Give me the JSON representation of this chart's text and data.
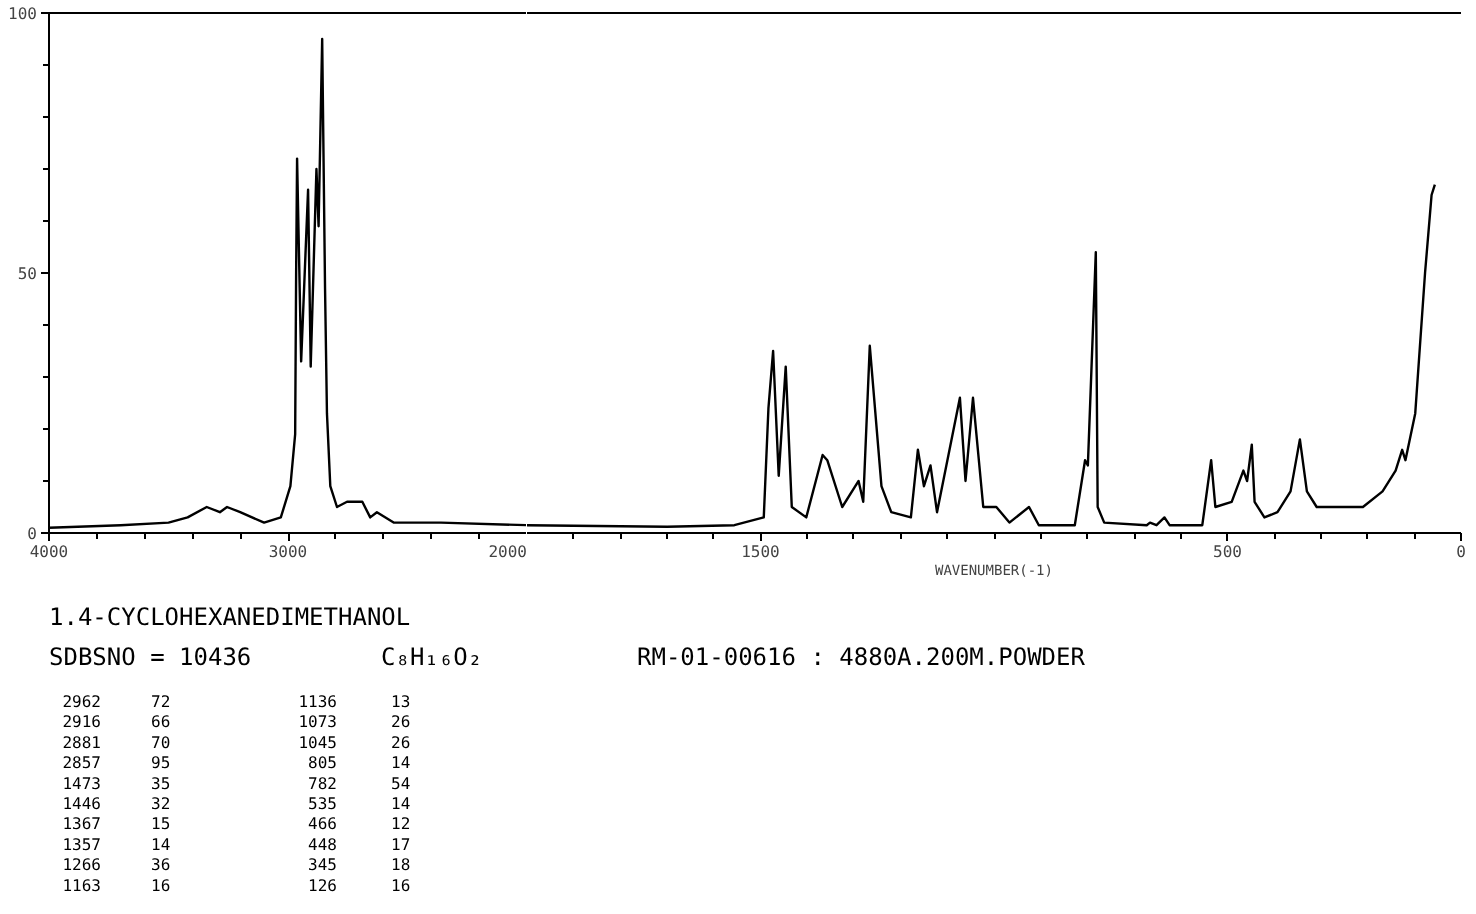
{
  "chart_data": [
    {
      "type": "line",
      "title": "1.4-CYCLOHEXANEDIMETHANOL",
      "x": [
        4000,
        3700,
        3500,
        3420,
        3340,
        3285,
        3255,
        3200,
        3100,
        3030,
        2990,
        2970,
        2966,
        2962,
        2945,
        2916,
        2905,
        2881,
        2872,
        2857,
        2845,
        2837,
        2823,
        2795,
        2753,
        2720,
        2689,
        2656,
        2628,
        2558,
        2360,
        2000
      ],
      "series": [
        {
          "color": "#000000",
          "values": [
            1,
            1.5,
            2,
            3,
            5,
            4,
            5,
            4,
            2,
            3,
            9,
            19,
            50,
            72,
            33,
            66,
            32,
            70,
            59,
            95,
            47,
            23,
            9,
            5,
            6,
            6,
            6,
            3,
            4,
            2,
            2,
            1.5
          ]
        }
      ],
      "xlim": [
        4000,
        2000
      ],
      "ylim": [
        0,
        100
      ],
      "grid": false,
      "marker": "none",
      "line_style": "solid",
      "xticks": [
        4000,
        {
          "value": 3800,
          "label": null
        },
        {
          "value": 3600,
          "label": null
        },
        {
          "value": 3400,
          "label": null
        },
        {
          "value": 3200,
          "label": null
        },
        3000,
        {
          "value": 2800,
          "label": null
        },
        {
          "value": 2600,
          "label": null
        },
        {
          "value": 2400,
          "label": null
        },
        {
          "value": 2200,
          "label": null
        },
        2000
      ],
      "yticks": [
        0,
        {
          "value": 10,
          "label": null
        },
        {
          "value": 20,
          "label": null
        },
        {
          "value": 30,
          "label": null
        },
        {
          "value": 40,
          "label": null
        },
        50,
        {
          "value": 60,
          "label": null
        },
        {
          "value": 70,
          "label": null
        },
        {
          "value": 80,
          "label": null
        },
        {
          "value": 90,
          "label": null
        },
        100
      ],
      "annotations": [
        "SDBSNO = 10436",
        "C₈H₁₆O₂",
        "RM-01-00616 : 4880A.200M.POWDER",
        "2962 72",
        "2916 66",
        "2881 70",
        "2857 95",
        "1473 35",
        "1446 32",
        "1367 15",
        "1357 14",
        "1266 36",
        "1163 16",
        "1136 13",
        "1073 26",
        "1045 26",
        "805 14",
        "782 54",
        "535 14",
        "466 12",
        "448 17",
        "345 18",
        "126 16"
      ]
    },
    {
      "type": "line",
      "xlabel": "WAVENUMBER(-1)",
      "x": [
        2000,
        1700,
        1556,
        1493,
        1483,
        1473,
        1461,
        1446,
        1433,
        1402,
        1367,
        1357,
        1325,
        1297,
        1290,
        1280,
        1266,
        1241,
        1220,
        1178,
        1163,
        1150,
        1136,
        1122,
        1073,
        1061,
        1045,
        1023,
        995,
        967,
        925,
        904,
        827,
        805,
        799,
        782,
        778,
        764,
        673,
        666,
        652,
        635,
        624,
        554,
        535,
        526,
        491,
        466,
        458,
        448,
        442,
        421,
        393,
        365,
        345,
        330,
        309,
        281,
        266,
        210,
        168,
        140,
        126,
        119,
        98,
        77,
        63,
        56
      ],
      "series": [
        {
          "color": "#000000",
          "values": [
            1.5,
            1.2,
            1.5,
            3,
            24,
            35,
            11,
            32,
            5,
            3,
            15,
            14,
            5,
            9,
            10,
            6,
            36,
            9,
            4,
            3,
            16,
            9,
            13,
            4,
            26,
            10,
            26,
            5,
            5,
            2,
            5,
            1.5,
            1.5,
            14,
            13,
            54,
            5,
            2,
            1.5,
            2,
            1.5,
            3,
            1.5,
            1.5,
            14,
            5,
            6,
            12,
            10,
            17,
            6,
            3,
            4,
            8,
            18,
            8,
            5,
            5,
            5,
            5,
            8,
            12,
            16,
            14,
            23,
            50,
            65,
            67
          ]
        }
      ],
      "xlim": [
        2000,
        0
      ],
      "ylim": [
        0,
        100
      ],
      "xticks": [
        {
          "value": 1900,
          "label": null
        },
        {
          "value": 1800,
          "label": null
        },
        {
          "value": 1700,
          "label": null
        },
        {
          "value": 1600,
          "label": null
        },
        1500,
        {
          "value": 1400,
          "label": null
        },
        {
          "value": 1300,
          "label": null
        },
        {
          "value": 1200,
          "label": null
        },
        {
          "value": 1100,
          "label": null
        },
        {
          "value": 1000,
          "label": null
        },
        {
          "value": 900,
          "label": null
        },
        {
          "value": 800,
          "label": null
        },
        {
          "value": 700,
          "label": null
        },
        {
          "value": 600,
          "label": null
        },
        500,
        {
          "value": 400,
          "label": null
        },
        {
          "value": 300,
          "label": null
        },
        {
          "value": 200,
          "label": null
        },
        {
          "value": 100,
          "label": null
        },
        0
      ],
      "tick_labels": "x",
      "grid": false,
      "marker": "none",
      "line_style": "solid"
    }
  ]
}
